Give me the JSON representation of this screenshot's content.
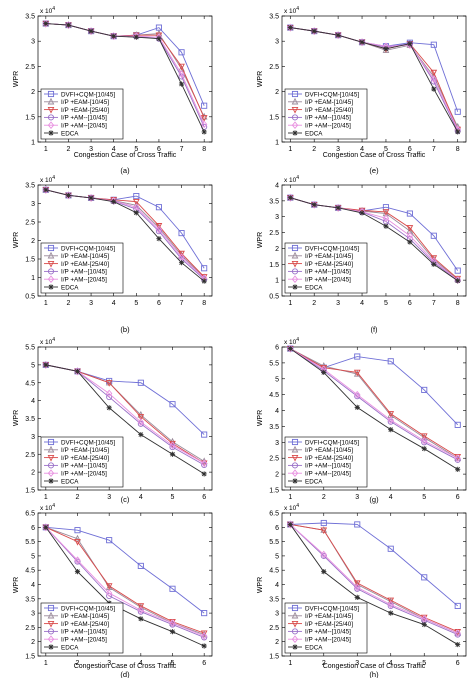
{
  "legend_entries": [
    "DVFI+CQM-[10/45]",
    "I/P  +EAM-[10/45]",
    "I/P  +EAM-[25/40]",
    "I/P  +AM--[10/45]",
    "I/P  +AM--[20/45]",
    "EDCA"
  ],
  "chart_data": [
    {
      "type": "line",
      "caption": "(a)",
      "ylabel": "WPR",
      "xlabel": "Congestion Case of Cross Traffic",
      "y_multiplier": "x 10^4",
      "x": [
        1,
        2,
        3,
        4,
        5,
        6,
        7,
        8
      ],
      "ylim": [
        1,
        3.5
      ],
      "yticks": [
        1,
        1.5,
        2,
        2.5,
        3,
        3.5
      ],
      "xticks": [
        1,
        2,
        3,
        4,
        5,
        6,
        7,
        8
      ],
      "grid": false,
      "legend_position": "bottom-left",
      "series": [
        {
          "name": "DVFI+CQM-[10/45]",
          "color": "#6f6fd6",
          "marker": "square",
          "values": [
            3.35,
            3.32,
            3.2,
            3.1,
            3.12,
            3.27,
            2.78,
            1.72
          ]
        },
        {
          "name": "I/P  +EAM-[10/45]",
          "color": "#9a8a9a",
          "marker": "triangle-up",
          "values": [
            3.35,
            3.32,
            3.2,
            3.1,
            3.12,
            3.15,
            2.45,
            1.5
          ]
        },
        {
          "name": "I/P  +EAM-[25/40]",
          "color": "#d94a4a",
          "marker": "triangle-down",
          "values": [
            3.35,
            3.32,
            3.2,
            3.1,
            3.12,
            3.12,
            2.5,
            1.48
          ]
        },
        {
          "name": "I/P  +AM--[10/45]",
          "color": "#9a70c8",
          "marker": "circle",
          "values": [
            3.35,
            3.32,
            3.2,
            3.1,
            3.1,
            3.05,
            2.3,
            1.3
          ]
        },
        {
          "name": "I/P  +AM--[20/45]",
          "color": "#e890e0",
          "marker": "diamond",
          "values": [
            3.35,
            3.32,
            3.2,
            3.1,
            3.1,
            3.08,
            2.35,
            1.35
          ]
        },
        {
          "name": "EDCA",
          "color": "#303030",
          "marker": "star",
          "values": [
            3.35,
            3.32,
            3.2,
            3.1,
            3.08,
            3.05,
            2.15,
            1.2
          ]
        }
      ]
    },
    {
      "type": "line",
      "caption": "(e)",
      "ylabel": "WPR",
      "xlabel": "Congestion Case of Cross Traffic",
      "y_multiplier": "x 10^4",
      "x": [
        1,
        2,
        3,
        4,
        5,
        6,
        7,
        8
      ],
      "ylim": [
        1,
        3.5
      ],
      "yticks": [
        1,
        1.5,
        2,
        2.5,
        3,
        3.5
      ],
      "xticks": [
        1,
        2,
        3,
        4,
        5,
        6,
        7,
        8
      ],
      "grid": false,
      "legend_position": "bottom-left",
      "series": [
        {
          "name": "DVFI+CQM-[10/45]",
          "color": "#6f6fd6",
          "marker": "square",
          "values": [
            3.27,
            3.2,
            3.12,
            2.98,
            2.9,
            2.97,
            2.93,
            1.6
          ]
        },
        {
          "name": "I/P  +EAM-[10/45]",
          "color": "#9a8a9a",
          "marker": "triangle-up",
          "values": [
            3.27,
            3.2,
            3.12,
            2.98,
            2.82,
            2.92,
            2.3,
            1.3
          ]
        },
        {
          "name": "I/P  +EAM-[25/40]",
          "color": "#d94a4a",
          "marker": "triangle-down",
          "values": [
            3.27,
            3.2,
            3.12,
            2.98,
            2.85,
            2.95,
            2.38,
            1.25
          ]
        },
        {
          "name": "I/P  +AM--[10/45]",
          "color": "#9a70c8",
          "marker": "circle",
          "values": [
            3.27,
            3.2,
            3.12,
            2.98,
            2.88,
            2.95,
            2.2,
            1.22
          ]
        },
        {
          "name": "I/P  +AM--[20/45]",
          "color": "#e890e0",
          "marker": "diamond",
          "values": [
            3.27,
            3.2,
            3.12,
            2.98,
            2.9,
            2.92,
            2.25,
            1.25
          ]
        },
        {
          "name": "EDCA",
          "color": "#303030",
          "marker": "star",
          "values": [
            3.27,
            3.2,
            3.12,
            2.98,
            2.85,
            2.95,
            2.05,
            1.2
          ]
        }
      ]
    },
    {
      "type": "line",
      "caption": "(b)",
      "ylabel": "WPR",
      "xlabel": "",
      "y_multiplier": "x 10^4",
      "x": [
        1,
        2,
        3,
        4,
        5,
        6,
        7,
        8
      ],
      "ylim": [
        0.5,
        3.5
      ],
      "yticks": [
        0.5,
        1,
        1.5,
        2,
        2.5,
        3,
        3.5
      ],
      "xticks": [
        1,
        2,
        3,
        4,
        5,
        6,
        7,
        8
      ],
      "grid": false,
      "legend_position": "bottom-left",
      "series": [
        {
          "name": "DVFI+CQM-[10/45]",
          "color": "#6f6fd6",
          "marker": "square",
          "values": [
            3.37,
            3.22,
            3.15,
            3.1,
            3.2,
            2.9,
            2.2,
            1.25
          ]
        },
        {
          "name": "I/P  +EAM-[10/45]",
          "color": "#9a8a9a",
          "marker": "triangle-up",
          "values": [
            3.37,
            3.22,
            3.15,
            3.08,
            2.95,
            2.35,
            1.6,
            1.0
          ]
        },
        {
          "name": "I/P  +EAM-[25/40]",
          "color": "#d94a4a",
          "marker": "triangle-down",
          "values": [
            3.37,
            3.22,
            3.15,
            3.1,
            3.05,
            2.4,
            1.65,
            1.02
          ]
        },
        {
          "name": "I/P  +AM--[10/45]",
          "color": "#9a70c8",
          "marker": "circle",
          "values": [
            3.37,
            3.22,
            3.15,
            3.06,
            2.85,
            2.25,
            1.5,
            0.95
          ]
        },
        {
          "name": "I/P  +AM--[20/45]",
          "color": "#e890e0",
          "marker": "diamond",
          "values": [
            3.37,
            3.22,
            3.15,
            3.07,
            2.9,
            2.3,
            1.55,
            0.98
          ]
        },
        {
          "name": "EDCA",
          "color": "#303030",
          "marker": "star",
          "values": [
            3.37,
            3.22,
            3.15,
            3.05,
            2.75,
            2.05,
            1.4,
            0.9
          ]
        }
      ]
    },
    {
      "type": "line",
      "caption": "(f)",
      "ylabel": "WPR",
      "xlabel": "",
      "y_multiplier": "x 10^4",
      "x": [
        1,
        2,
        3,
        4,
        5,
        6,
        7,
        8
      ],
      "ylim": [
        0.5,
        4
      ],
      "yticks": [
        0.5,
        1,
        1.5,
        2,
        2.5,
        3,
        3.5,
        4
      ],
      "xticks": [
        1,
        2,
        3,
        4,
        5,
        6,
        7,
        8
      ],
      "grid": false,
      "legend_position": "bottom-left",
      "series": [
        {
          "name": "DVFI+CQM-[10/45]",
          "color": "#6f6fd6",
          "marker": "square",
          "values": [
            3.6,
            3.38,
            3.28,
            3.18,
            3.3,
            3.1,
            2.4,
            1.3
          ]
        },
        {
          "name": "I/P  +EAM-[10/45]",
          "color": "#9a8a9a",
          "marker": "triangle-up",
          "values": [
            3.6,
            3.38,
            3.28,
            3.18,
            3.1,
            2.55,
            1.65,
            1.02
          ]
        },
        {
          "name": "I/P  +EAM-[25/40]",
          "color": "#d94a4a",
          "marker": "triangle-down",
          "values": [
            3.6,
            3.38,
            3.28,
            3.2,
            3.15,
            2.65,
            1.7,
            1.05
          ]
        },
        {
          "name": "I/P  +AM--[10/45]",
          "color": "#9a70c8",
          "marker": "circle",
          "values": [
            3.6,
            3.38,
            3.28,
            3.15,
            2.85,
            2.3,
            1.55,
            1.0
          ]
        },
        {
          "name": "I/P  +AM--[20/45]",
          "color": "#e890e0",
          "marker": "diamond",
          "values": [
            3.6,
            3.38,
            3.28,
            3.16,
            2.95,
            2.4,
            1.6,
            1.0
          ]
        },
        {
          "name": "EDCA",
          "color": "#303030",
          "marker": "star",
          "values": [
            3.6,
            3.38,
            3.28,
            3.12,
            2.7,
            2.2,
            1.5,
            0.98
          ]
        }
      ]
    },
    {
      "type": "line",
      "caption": "(c)",
      "ylabel": "WPR",
      "xlabel": "",
      "y_multiplier": "x 10^4",
      "x": [
        1,
        2,
        3,
        4,
        5,
        6
      ],
      "ylim": [
        1.5,
        5.5
      ],
      "yticks": [
        1.5,
        2,
        2.5,
        3,
        3.5,
        4,
        4.5,
        5,
        5.5
      ],
      "xticks": [
        1,
        2,
        3,
        4,
        5,
        6
      ],
      "grid": false,
      "legend_position": "bottom-left",
      "series": [
        {
          "name": "DVFI+CQM-[10/45]",
          "color": "#6f6fd6",
          "marker": "square",
          "values": [
            5.0,
            4.82,
            4.55,
            4.5,
            3.9,
            3.05
          ]
        },
        {
          "name": "I/P  +EAM-[10/45]",
          "color": "#9a8a9a",
          "marker": "triangle-up",
          "values": [
            5.0,
            4.82,
            4.5,
            3.6,
            2.85,
            2.3
          ]
        },
        {
          "name": "I/P  +EAM-[25/40]",
          "color": "#d94a4a",
          "marker": "triangle-down",
          "values": [
            5.0,
            4.82,
            4.5,
            3.55,
            2.8,
            2.25
          ]
        },
        {
          "name": "I/P  +AM--[10/45]",
          "color": "#9a70c8",
          "marker": "circle",
          "values": [
            5.0,
            4.82,
            4.1,
            3.35,
            2.7,
            2.2
          ]
        },
        {
          "name": "I/P  +AM--[20/45]",
          "color": "#e890e0",
          "marker": "diamond",
          "values": [
            5.0,
            4.82,
            4.2,
            3.4,
            2.75,
            2.25
          ]
        },
        {
          "name": "EDCA",
          "color": "#303030",
          "marker": "star",
          "values": [
            5.0,
            4.82,
            3.8,
            3.05,
            2.5,
            1.95
          ]
        }
      ]
    },
    {
      "type": "line",
      "caption": "(g)",
      "ylabel": "WPR",
      "xlabel": "",
      "y_multiplier": "x 10^4",
      "x": [
        1,
        2,
        3,
        4,
        5,
        6
      ],
      "ylim": [
        1.5,
        6
      ],
      "yticks": [
        1.5,
        2,
        2.5,
        3,
        3.5,
        4,
        4.5,
        5,
        5.5,
        6
      ],
      "xticks": [
        1,
        2,
        3,
        4,
        5,
        6
      ],
      "grid": false,
      "legend_position": "bottom-left",
      "series": [
        {
          "name": "DVFI+CQM-[10/45]",
          "color": "#6f6fd6",
          "marker": "square",
          "values": [
            5.95,
            5.35,
            5.7,
            5.55,
            4.65,
            3.55
          ]
        },
        {
          "name": "I/P  +EAM-[10/45]",
          "color": "#9a8a9a",
          "marker": "triangle-up",
          "values": [
            5.95,
            5.4,
            5.15,
            3.85,
            3.15,
            2.5
          ]
        },
        {
          "name": "I/P  +EAM-[25/40]",
          "color": "#d94a4a",
          "marker": "triangle-down",
          "values": [
            5.95,
            5.35,
            5.2,
            3.9,
            3.2,
            2.55
          ]
        },
        {
          "name": "I/P  +AM--[10/45]",
          "color": "#9a70c8",
          "marker": "circle",
          "values": [
            5.95,
            5.25,
            4.45,
            3.65,
            3.0,
            2.45
          ]
        },
        {
          "name": "I/P  +AM--[20/45]",
          "color": "#e890e0",
          "marker": "diamond",
          "values": [
            5.95,
            5.3,
            4.5,
            3.7,
            3.05,
            2.5
          ]
        },
        {
          "name": "EDCA",
          "color": "#303030",
          "marker": "star",
          "values": [
            5.95,
            5.2,
            4.1,
            3.4,
            2.8,
            2.15
          ]
        }
      ]
    },
    {
      "type": "line",
      "caption": "(d)",
      "ylabel": "WPR",
      "xlabel": "Congestion Case of Cross Traffic",
      "y_multiplier": "x 10^4",
      "x": [
        1,
        2,
        3,
        4,
        5,
        6
      ],
      "ylim": [
        1.5,
        6.5
      ],
      "yticks": [
        1.5,
        2,
        2.5,
        3,
        3.5,
        4,
        4.5,
        5,
        5.5,
        6,
        6.5
      ],
      "xticks": [
        1,
        2,
        3,
        4,
        5,
        6
      ],
      "grid": false,
      "legend_position": "bottom-left",
      "series": [
        {
          "name": "DVFI+CQM-[10/45]",
          "color": "#6f6fd6",
          "marker": "square",
          "values": [
            6.0,
            5.9,
            5.55,
            4.65,
            3.85,
            3.0
          ]
        },
        {
          "name": "I/P  +EAM-[10/45]",
          "color": "#9a8a9a",
          "marker": "triangle-up",
          "values": [
            6.0,
            5.6,
            3.9,
            3.2,
            2.65,
            2.25
          ]
        },
        {
          "name": "I/P  +EAM-[25/40]",
          "color": "#d94a4a",
          "marker": "triangle-down",
          "values": [
            6.0,
            5.5,
            3.95,
            3.25,
            2.7,
            2.3
          ]
        },
        {
          "name": "I/P  +AM--[10/45]",
          "color": "#9a70c8",
          "marker": "circle",
          "values": [
            6.0,
            4.8,
            3.6,
            3.05,
            2.6,
            2.15
          ]
        },
        {
          "name": "I/P  +AM--[20/45]",
          "color": "#e890e0",
          "marker": "diamond",
          "values": [
            6.0,
            4.85,
            3.7,
            3.1,
            2.65,
            2.2
          ]
        },
        {
          "name": "EDCA",
          "color": "#303030",
          "marker": "star",
          "values": [
            6.0,
            4.45,
            3.35,
            2.8,
            2.35,
            1.85
          ]
        }
      ]
    },
    {
      "type": "line",
      "caption": "(h)",
      "ylabel": "WPR",
      "xlabel": "Congestion Case of Cross Traffic",
      "y_multiplier": "x 10^4",
      "x": [
        1,
        2,
        3,
        4,
        5,
        6
      ],
      "ylim": [
        1.5,
        6.5
      ],
      "yticks": [
        1.5,
        2,
        2.5,
        3,
        3.5,
        4,
        4.5,
        5,
        5.5,
        6,
        6.5
      ],
      "xticks": [
        1,
        2,
        3,
        4,
        5,
        6
      ],
      "grid": false,
      "legend_position": "bottom-left",
      "series": [
        {
          "name": "DVFI+CQM-[10/45]",
          "color": "#6f6fd6",
          "marker": "square",
          "values": [
            6.1,
            6.15,
            6.1,
            5.25,
            4.25,
            3.25
          ]
        },
        {
          "name": "I/P  +EAM-[10/45]",
          "color": "#9a8a9a",
          "marker": "triangle-up",
          "values": [
            6.1,
            5.9,
            4.0,
            3.4,
            2.8,
            2.3
          ]
        },
        {
          "name": "I/P  +EAM-[25/40]",
          "color": "#d94a4a",
          "marker": "triangle-down",
          "values": [
            6.1,
            5.9,
            4.05,
            3.45,
            2.85,
            2.35
          ]
        },
        {
          "name": "I/P  +AM--[10/45]",
          "color": "#9a70c8",
          "marker": "circle",
          "values": [
            6.1,
            5.0,
            3.85,
            3.25,
            2.75,
            2.25
          ]
        },
        {
          "name": "I/P  +AM--[20/45]",
          "color": "#e890e0",
          "marker": "diamond",
          "values": [
            6.1,
            5.05,
            3.9,
            3.3,
            2.8,
            2.3
          ]
        },
        {
          "name": "EDCA",
          "color": "#303030",
          "marker": "star",
          "values": [
            6.1,
            4.45,
            3.55,
            3.0,
            2.6,
            1.9
          ]
        }
      ]
    }
  ]
}
